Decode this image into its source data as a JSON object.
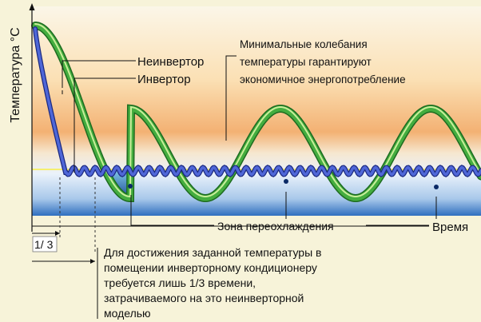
{
  "axis": {
    "ylabel": "Температура °C",
    "xlabel": "Время"
  },
  "legend": {
    "non_inverter": "Неинвертор",
    "inverter": "Инвертор"
  },
  "annotations": {
    "fluctuations": [
      "Минимальные колебания",
      "температуры гарантируют",
      "экономичное энергопотребление"
    ],
    "overcooling_zone": "Зона переохлаждения",
    "one_third": "1/ 3",
    "note": [
      "Для достижения заданной температуры в",
      "помещении инверторному кондиционеру",
      "требуется лишь 1/3 времени,",
      "затрачиваемого на это неинверторной",
      "моделью"
    ]
  },
  "colors": {
    "background": "#f7f3d9",
    "warm_top": "#f4b876",
    "cool_bottom": "#2f78c4",
    "non_inverter_curve": "#2e9a33",
    "inverter_curve": "#3348b0"
  }
}
